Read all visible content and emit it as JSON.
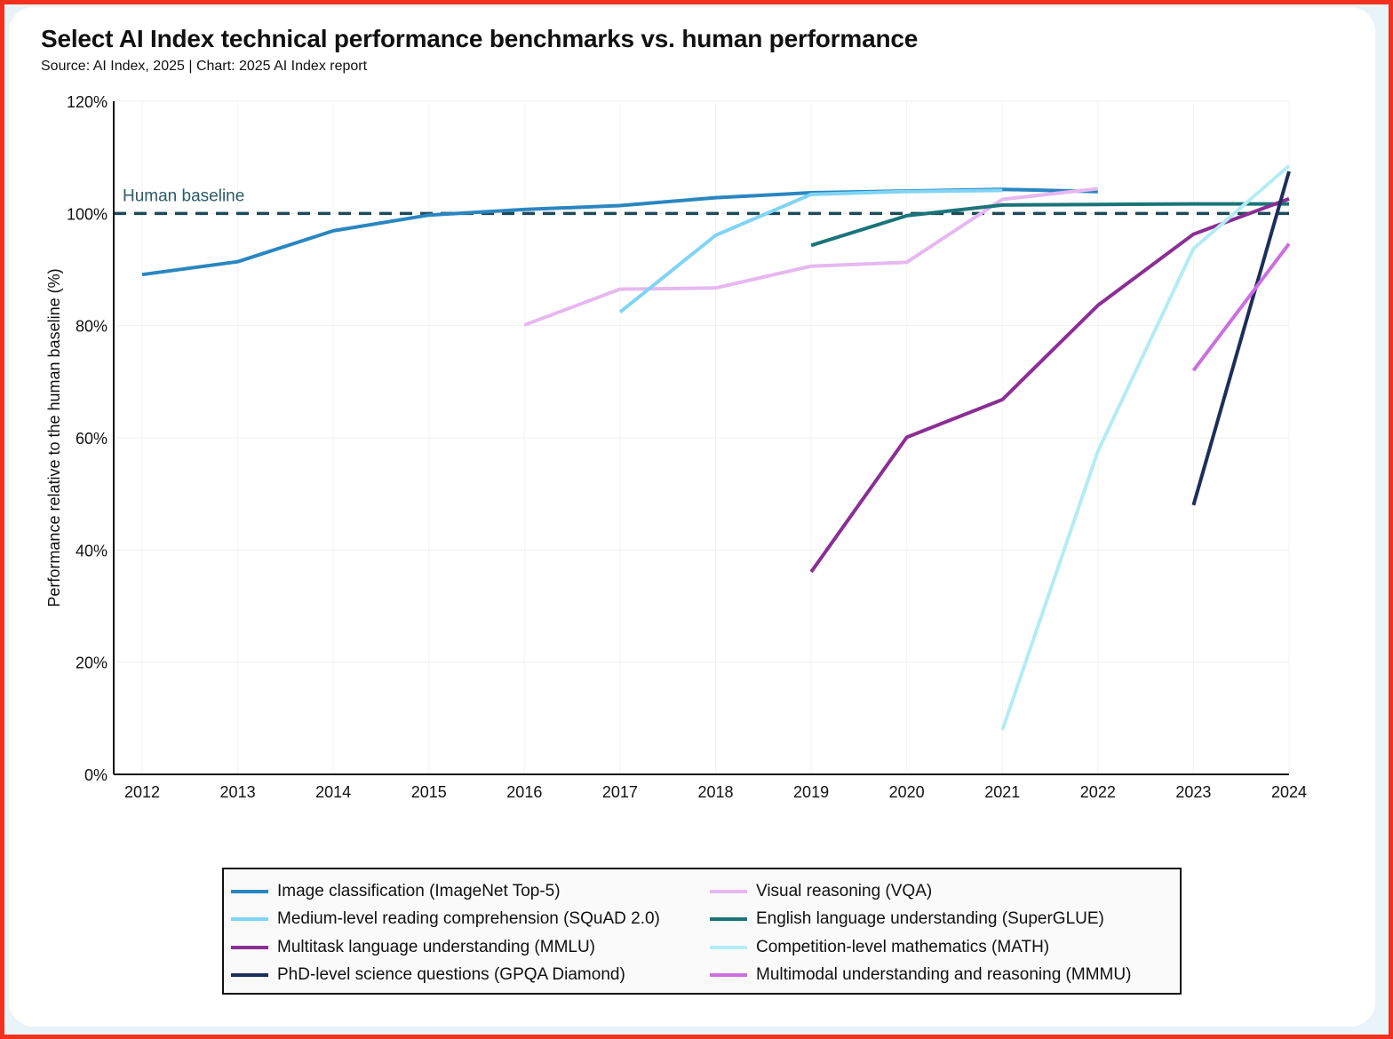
{
  "title": "Select AI Index technical performance benchmarks vs. human performance",
  "subtitle": "Source: AI Index, 2025 | Chart: 2025 AI Index report",
  "chart_data": {
    "type": "line",
    "title": "Select AI Index technical performance benchmarks vs. human performance",
    "subtitle": "Source: AI Index, 2025 | Chart: 2025 AI Index report",
    "xlabel": "",
    "ylabel": "Performance relative to the human baseline (%)",
    "xlim": [
      2012,
      2024
    ],
    "ylim": [
      0,
      120
    ],
    "x_ticks": [
      "2012",
      "2013",
      "2014",
      "2015",
      "2016",
      "2017",
      "2018",
      "2019",
      "2020",
      "2021",
      "2022",
      "2023",
      "2024"
    ],
    "y_ticks": [
      0,
      20,
      40,
      60,
      80,
      100,
      120
    ],
    "y_tick_labels": [
      "0%",
      "20%",
      "40%",
      "60%",
      "80%",
      "100%",
      "120%"
    ],
    "grid": true,
    "legend_position": "bottom",
    "reference_line": {
      "label": "Human baseline",
      "y": 100,
      "color": "#1e4a57"
    },
    "series": [
      {
        "name": "Image classification (ImageNet Top-5)",
        "color": "#2a86c0",
        "x": [
          2012,
          2013,
          2014,
          2015,
          2016,
          2017,
          2018,
          2019,
          2020,
          2021,
          2022
        ],
        "y": [
          89.1,
          91.4,
          96.9,
          99.7,
          100.7,
          101.4,
          102.8,
          103.7,
          104.0,
          104.3,
          103.9
        ]
      },
      {
        "name": "Visual reasoning (VQA)",
        "color": "#e6b8f0",
        "x": [
          2016,
          2017,
          2018,
          2019,
          2020,
          2021,
          2022
        ],
        "y": [
          80.1,
          86.5,
          86.7,
          90.6,
          91.3,
          102.5,
          104.4
        ]
      },
      {
        "name": "Medium-level reading comprehension (SQuAD 2.0)",
        "color": "#80d4f4",
        "x": [
          2017,
          2018,
          2019,
          2020,
          2021
        ],
        "y": [
          82.4,
          96.1,
          103.4,
          103.9,
          104.1
        ]
      },
      {
        "name": "English language understanding (SuperGLUE)",
        "color": "#1a7478",
        "x": [
          2019,
          2020,
          2021,
          2022,
          2023,
          2024
        ],
        "y": [
          94.3,
          99.6,
          101.5,
          101.6,
          101.7,
          101.7
        ]
      },
      {
        "name": "Multitask language understanding (MMLU)",
        "color": "#8b2e95",
        "x": [
          2019,
          2020,
          2021,
          2022,
          2023,
          2024
        ],
        "y": [
          36.1,
          60.1,
          66.8,
          83.6,
          96.3,
          102.6
        ]
      },
      {
        "name": "Competition-level mathematics (MATH)",
        "color": "#b3ecf4",
        "x": [
          2021,
          2022,
          2023,
          2024
        ],
        "y": [
          7.9,
          57.6,
          93.7,
          108.5
        ]
      },
      {
        "name": "PhD-level science questions (GPQA Diamond)",
        "color": "#1c2f5a",
        "x": [
          2023,
          2024
        ],
        "y": [
          48.0,
          107.5
        ]
      },
      {
        "name": "Multimodal understanding and reasoning (MMMU)",
        "color": "#cc6ee0",
        "x": [
          2023,
          2024
        ],
        "y": [
          72.0,
          94.6
        ]
      }
    ]
  },
  "legend": {
    "left": [
      {
        "label": "Image classification (ImageNet Top-5)",
        "color": "#2a86c0"
      },
      {
        "label": "Medium-level reading comprehension (SQuAD 2.0)",
        "color": "#80d4f4"
      },
      {
        "label": "Multitask language understanding (MMLU)",
        "color": "#8b2e95"
      },
      {
        "label": "PhD-level science questions (GPQA Diamond)",
        "color": "#1c2f5a"
      }
    ],
    "right": [
      {
        "label": "Visual reasoning (VQA)",
        "color": "#e6b8f0"
      },
      {
        "label": "English language understanding (SuperGLUE)",
        "color": "#1a7478"
      },
      {
        "label": "Competition-level mathematics (MATH)",
        "color": "#b3ecf4"
      },
      {
        "label": "Multimodal understanding and reasoning (MMMU)",
        "color": "#cc6ee0"
      }
    ]
  }
}
